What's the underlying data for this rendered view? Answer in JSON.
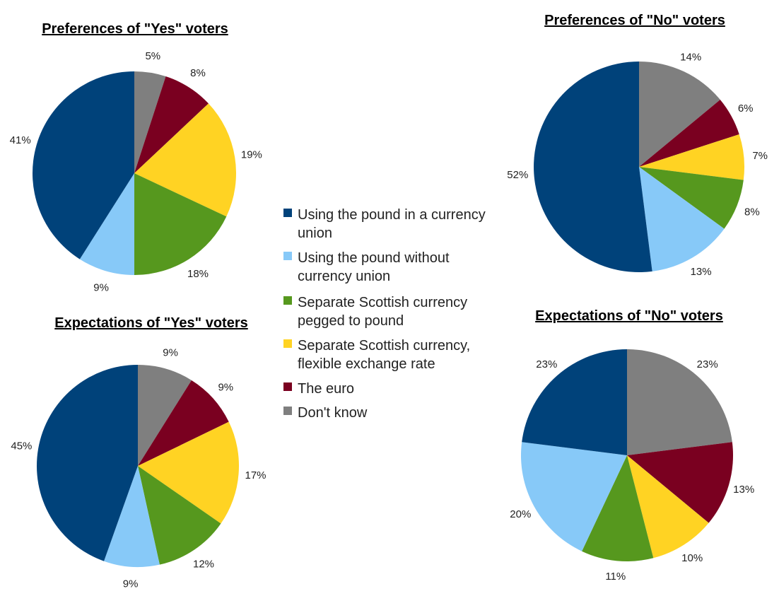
{
  "legend": {
    "items": [
      {
        "label_lines": [
          "Using the pound in a currency",
          "union"
        ],
        "color": "#00427a"
      },
      {
        "label_lines": [
          "Using the pound without",
          "currency union"
        ],
        "color": "#87c9f8"
      },
      {
        "label_lines": [
          "Separate Scottish currency",
          "pegged to pound"
        ],
        "color": "#56981e"
      },
      {
        "label_lines": [
          "Separate Scottish currency,",
          "flexible exchange rate"
        ],
        "color": "#ffd323"
      },
      {
        "label_lines": [
          "The euro"
        ],
        "color": "#7a0020"
      },
      {
        "label_lines": [
          "Don't know"
        ],
        "color": "#7f7f7f"
      }
    ]
  },
  "chart_data": [
    {
      "type": "pie",
      "title": "Preferences of \"Yes\" voters",
      "categories": [
        "Using the pound in a currency union",
        "Using the pound without currency union",
        "Separate Scottish currency pegged to pound",
        "Separate Scottish currency, flexible exchange rate",
        "The euro",
        "Don't know"
      ],
      "values": [
        41,
        9,
        18,
        19,
        8,
        5
      ],
      "labels": [
        "41%",
        "9%",
        "18%",
        "19%",
        "8%",
        "5%"
      ]
    },
    {
      "type": "pie",
      "title": "Preferences of \"No\" voters",
      "categories": [
        "Using the pound in a currency union",
        "Using the pound without currency union",
        "Separate Scottish currency pegged to pound",
        "Separate Scottish currency, flexible exchange rate",
        "The euro",
        "Don't know"
      ],
      "values": [
        52,
        13,
        8,
        7,
        6,
        14
      ],
      "labels": [
        "52%",
        "13%",
        "8%",
        "7%",
        "6%",
        "14%"
      ]
    },
    {
      "type": "pie",
      "title": "Expectations of \"Yes\" voters",
      "categories": [
        "Using the pound in a currency union",
        "Using the pound without currency union",
        "Separate Scottish currency pegged to pound",
        "Separate Scottish currency, flexible exchange rate",
        "The euro",
        "Don't know"
      ],
      "values": [
        45,
        9,
        12,
        17,
        9,
        9
      ],
      "labels": [
        "45%",
        "9%",
        "12%",
        "17%",
        "9%",
        "9%"
      ]
    },
    {
      "type": "pie",
      "title": "Expectations of \"No\" voters",
      "categories": [
        "Using the pound in a currency union",
        "Using the pound without currency union",
        "Separate Scottish currency pegged to pound",
        "Separate Scottish currency, flexible exchange rate",
        "The euro",
        "Don't know"
      ],
      "values": [
        23,
        20,
        11,
        10,
        13,
        23
      ],
      "labels": [
        "23%",
        "20%",
        "11%",
        "10%",
        "13%",
        "23%"
      ]
    }
  ]
}
